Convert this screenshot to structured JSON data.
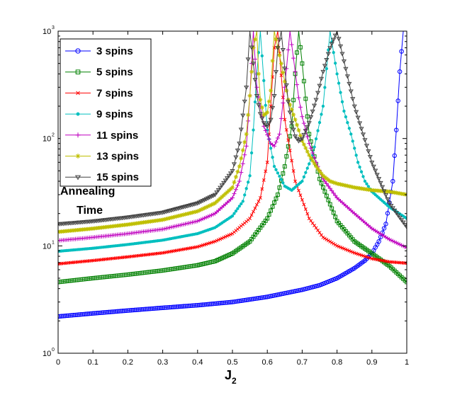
{
  "chart_data": {
    "type": "line",
    "title": "",
    "xlabel": "J",
    "xlabel_subscript": "2",
    "ylabel_line1": "Annealing",
    "ylabel_line2": "Time",
    "xlim": [
      0,
      1
    ],
    "ylim": [
      1,
      1000
    ],
    "yscale": "log",
    "grid": false,
    "legend_position": "top-left",
    "x_ticks": [
      0,
      0.1,
      0.2,
      0.3,
      0.4,
      0.5,
      0.6,
      0.7,
      0.8,
      0.9,
      1
    ],
    "x_tick_labels": [
      "0",
      "0.1",
      "0.2",
      "0.3",
      "0.4",
      "0.5",
      "0.6",
      "0.7",
      "0.8",
      "0.9",
      "1"
    ],
    "y_ticks": [
      1,
      10,
      100,
      1000
    ],
    "y_tick_bases": [
      "10",
      "10",
      "10",
      "10"
    ],
    "y_tick_exponents": [
      "0",
      "1",
      "2",
      "3"
    ],
    "series": [
      {
        "name": "3 spins",
        "color": "#0000ff",
        "marker": "circle",
        "x": [
          0,
          0.1,
          0.2,
          0.3,
          0.4,
          0.5,
          0.6,
          0.7,
          0.75,
          0.8,
          0.85,
          0.88,
          0.9,
          0.92,
          0.94,
          0.96,
          0.97,
          0.98,
          0.99,
          1.0
        ],
        "y": [
          2.2,
          2.35,
          2.5,
          2.65,
          2.8,
          3.0,
          3.35,
          3.9,
          4.3,
          5.0,
          6.2,
          7.3,
          8.5,
          11,
          16,
          40,
          120,
          420,
          1000,
          1000
        ]
      },
      {
        "name": "5 spins",
        "color": "#008000",
        "marker": "square",
        "x": [
          0,
          0.1,
          0.2,
          0.3,
          0.4,
          0.45,
          0.5,
          0.55,
          0.6,
          0.63,
          0.65,
          0.67,
          0.68,
          0.69,
          0.7,
          0.72,
          0.75,
          0.8,
          0.85,
          0.9,
          0.95,
          1.0
        ],
        "y": [
          4.6,
          5.0,
          5.4,
          5.9,
          6.6,
          7.2,
          8.5,
          11,
          18,
          30,
          55,
          130,
          400,
          1000,
          500,
          110,
          42,
          17,
          11,
          8.5,
          6.5,
          4.6
        ]
      },
      {
        "name": "7 spins",
        "color": "#ff0000",
        "marker": "x",
        "x": [
          0,
          0.1,
          0.2,
          0.3,
          0.4,
          0.45,
          0.5,
          0.55,
          0.58,
          0.6,
          0.61,
          0.62,
          0.63,
          0.65,
          0.68,
          0.72,
          0.76,
          0.8,
          0.85,
          0.9,
          0.95,
          1.0
        ],
        "y": [
          6.8,
          7.3,
          7.9,
          8.6,
          9.8,
          11,
          13,
          18,
          28,
          60,
          200,
          700,
          1000,
          150,
          40,
          18,
          12,
          10,
          8.6,
          7.6,
          7.1,
          6.9
        ]
      },
      {
        "name": "9 spins",
        "color": "#00bfbf",
        "marker": "dot",
        "x": [
          0,
          0.1,
          0.2,
          0.3,
          0.4,
          0.45,
          0.5,
          0.53,
          0.55,
          0.56,
          0.57,
          0.58,
          0.6,
          0.62,
          0.65,
          0.67,
          0.7,
          0.73,
          0.76,
          0.78,
          0.8,
          0.82,
          0.84,
          0.86,
          0.88,
          0.9,
          0.95,
          1.0
        ],
        "y": [
          8.9,
          9.5,
          10.3,
          11.3,
          13,
          14.8,
          19,
          26,
          45,
          120,
          400,
          1000,
          120,
          55,
          36,
          33,
          40,
          70,
          200,
          1000,
          400,
          180,
          110,
          60,
          40,
          32,
          23,
          18
        ]
      },
      {
        "name": "11 spins",
        "color": "#bf00bf",
        "marker": "plus",
        "x": [
          0,
          0.1,
          0.2,
          0.3,
          0.4,
          0.45,
          0.5,
          0.52,
          0.54,
          0.55,
          0.56,
          0.57,
          0.59,
          0.61,
          0.62,
          0.635,
          0.65,
          0.665,
          0.68,
          0.69,
          0.7,
          0.72,
          0.74,
          0.76,
          0.8,
          0.85,
          0.9,
          0.95,
          1.0
        ],
        "y": [
          11.2,
          12,
          13,
          14.3,
          17,
          20,
          28,
          40,
          85,
          250,
          1000,
          300,
          130,
          90,
          85,
          110,
          300,
          1000,
          420,
          240,
          160,
          90,
          60,
          42,
          28,
          20,
          14.5,
          11.5,
          9.6
        ]
      },
      {
        "name": "13 spins",
        "color": "#bfbf00",
        "marker": "asterisk",
        "x": [
          0,
          0.1,
          0.2,
          0.3,
          0.4,
          0.45,
          0.5,
          0.52,
          0.54,
          0.55,
          0.56,
          0.57,
          0.575,
          0.58,
          0.59,
          0.6,
          0.61,
          0.62,
          0.64,
          0.66,
          0.68,
          0.7,
          0.72,
          0.74,
          0.76,
          0.78,
          0.8,
          0.85,
          0.9,
          0.95,
          1.0
        ],
        "y": [
          13.5,
          14.5,
          15.8,
          17.5,
          21,
          25,
          35,
          55,
          110,
          250,
          700,
          1000,
          400,
          230,
          165,
          175,
          280,
          1000,
          500,
          230,
          150,
          95,
          70,
          55,
          45,
          40,
          38,
          35,
          33,
          32,
          30
        ]
      },
      {
        "name": "15 spins",
        "color": "#404040",
        "marker": "triangle",
        "x": [
          0,
          0.1,
          0.2,
          0.3,
          0.4,
          0.45,
          0.5,
          0.52,
          0.54,
          0.55,
          0.56,
          0.57,
          0.58,
          0.59,
          0.6,
          0.61,
          0.62,
          0.63,
          0.64,
          0.65,
          0.66,
          0.67,
          0.68,
          0.69,
          0.7,
          0.72,
          0.74,
          0.76,
          0.78,
          0.8,
          0.85,
          0.9,
          0.95,
          1.0
        ],
        "y": [
          16,
          17,
          18.5,
          20.5,
          25,
          30,
          50,
          90,
          300,
          1000,
          500,
          250,
          170,
          140,
          130,
          150,
          250,
          700,
          1000,
          450,
          220,
          140,
          105,
          95,
          100,
          140,
          230,
          420,
          700,
          1000,
          200,
          60,
          25,
          15
        ]
      }
    ]
  }
}
